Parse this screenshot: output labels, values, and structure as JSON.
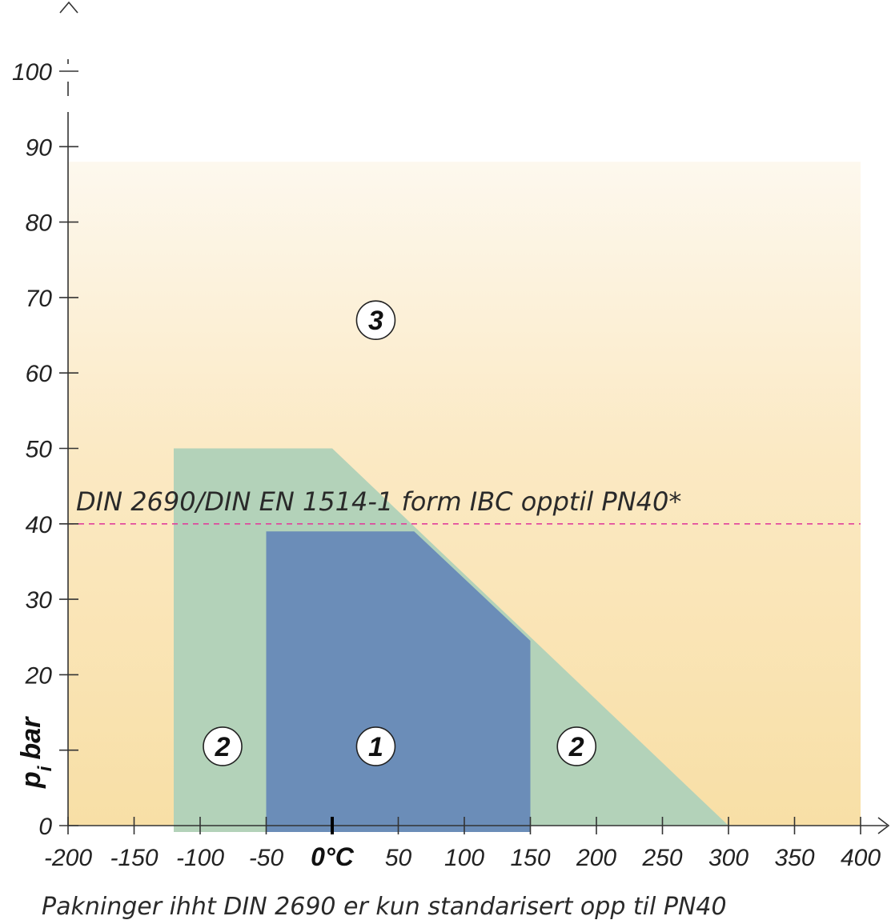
{
  "chart_data": {
    "type": "area",
    "x_ticks": [
      -200,
      -150,
      -100,
      -50,
      0,
      50,
      100,
      150,
      200,
      250,
      300,
      350,
      400
    ],
    "x_tick_labels": [
      "-200",
      "-150",
      "-100",
      "-50",
      "0°C",
      "50",
      "100",
      "150",
      "200",
      "250",
      "300",
      "350",
      "400"
    ],
    "y_ticks": [
      0,
      10,
      20,
      30,
      40,
      50,
      60,
      70,
      80,
      90,
      100
    ],
    "y_tick_labels": [
      "0",
      "",
      "20",
      "30",
      "40",
      "50",
      "60",
      "70",
      "80",
      "90",
      "100"
    ],
    "xlim": [
      -200,
      400
    ],
    "ylim": [
      0,
      100
    ],
    "ylabel_main": "p",
    "ylabel_sub": "i",
    "ylabel_rest": "bar",
    "regions": [
      {
        "zone": "3",
        "color": "#fae6b6",
        "points": [
          [
            -200,
            0
          ],
          [
            -200,
            88
          ],
          [
            400,
            88
          ],
          [
            400,
            0
          ]
        ]
      },
      {
        "zone": "2",
        "color": "#b3d2b9",
        "points": [
          [
            -120,
            0
          ],
          [
            -120,
            50
          ],
          [
            0,
            50
          ],
          [
            300,
            0
          ]
        ]
      },
      {
        "zone": "1",
        "color": "#6b8db8",
        "points": [
          [
            -50,
            0
          ],
          [
            -50,
            39
          ],
          [
            62,
            39
          ],
          [
            150,
            24.5
          ],
          [
            150,
            0
          ]
        ]
      }
    ],
    "zone_labels": [
      {
        "text": "3",
        "x": 33,
        "y": 67
      },
      {
        "text": "2",
        "x": -83,
        "y": 10.5
      },
      {
        "text": "1",
        "x": 33,
        "y": 10.5
      },
      {
        "text": "2",
        "x": 185,
        "y": 10.5
      }
    ],
    "reference_line": {
      "y": 40,
      "color": "#e0409c",
      "style": "dashed",
      "label": "DIN 2690/DIN EN 1514-1  form IBC opptil PN40*"
    },
    "footnote": "Pakninger ihht DIN 2690 er kun standarisert opp til PN40",
    "grid": false
  }
}
